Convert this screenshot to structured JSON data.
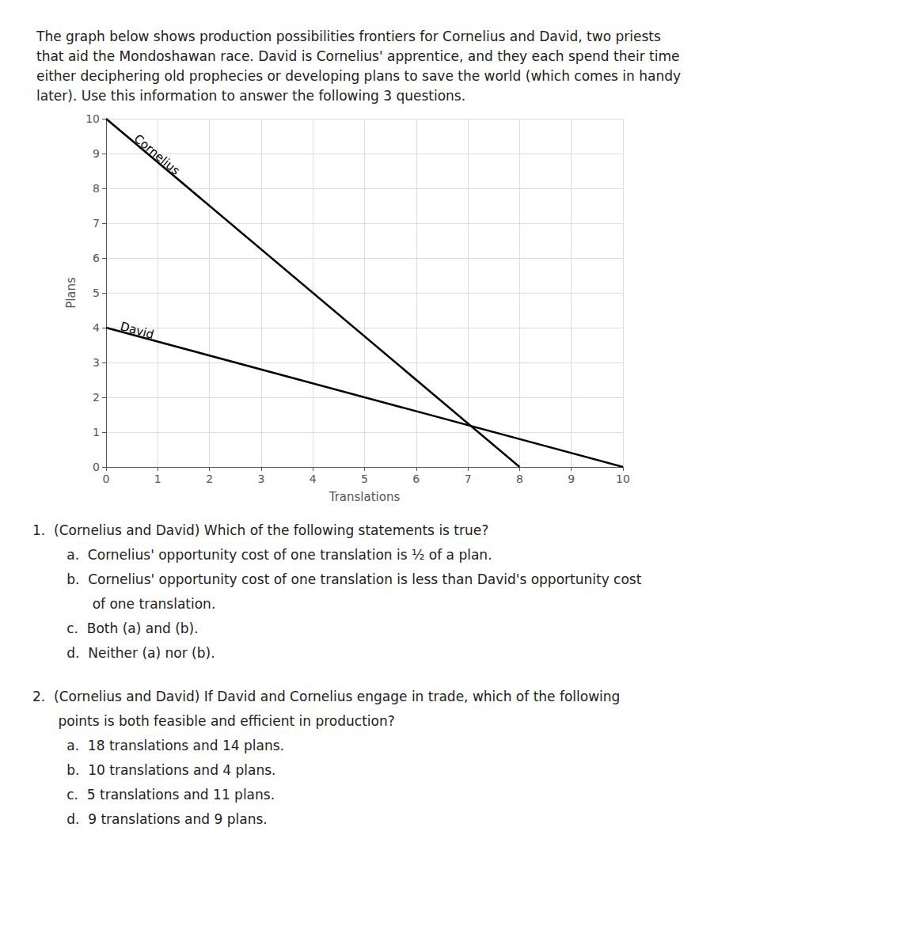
{
  "chart_data": {
    "type": "line",
    "title": "The graph below shows production possibilities frontiers for Cornelius and David, two priests\nthat aid the Mondoshawan race. David is Cornelius' apprentice, and they each spend their time\neither deciphering old prophecies or developing plans to save the world (which comes in handy\nlater). Use this information to answer the following 3 questions.",
    "xlabel": "Translations",
    "ylabel": "Plans",
    "series": [
      {
        "name": "Cornelius",
        "color": "#000000",
        "x": [
          0,
          8
        ],
        "values": [
          10,
          0
        ]
      },
      {
        "name": "David",
        "color": "#000000",
        "x": [
          0,
          10
        ],
        "values": [
          4,
          0
        ]
      }
    ],
    "xlim": [
      0,
      10
    ],
    "ylim": [
      0,
      10
    ],
    "xticks": [
      0,
      1,
      2,
      3,
      4,
      5,
      6,
      7,
      8,
      9,
      10
    ],
    "yticks": [
      0,
      1,
      2,
      3,
      4,
      5,
      6,
      7,
      8,
      9,
      10
    ],
    "grid": true,
    "annotations": [
      {
        "text": "Cornelius",
        "x": 0.5,
        "y": 9.35
      },
      {
        "text": "David",
        "x": 0.25,
        "y": 3.88
      }
    ],
    "questions": [
      [
        "1.  (Cornelius and David) Which of the following statements is true?",
        "        a.  Cornelius' opportunity cost of one translation is ½ of a plan.",
        "        b.  Cornelius' opportunity cost of one translation is less than David's opportunity cost",
        "              of one translation.",
        "        c.  Both (a) and (b).",
        "        d.  Neither (a) nor (b)."
      ],
      [
        "2.  (Cornelius and David) If David and Cornelius engage in trade, which of the following",
        "      points is both feasible and efficient in production?",
        "        a.  18 translations and 14 plans.",
        "        b.  10 translations and 4 plans.",
        "        c.  5 translations and 11 plans.",
        "        d.  9 translations and 9 plans."
      ]
    ]
  }
}
